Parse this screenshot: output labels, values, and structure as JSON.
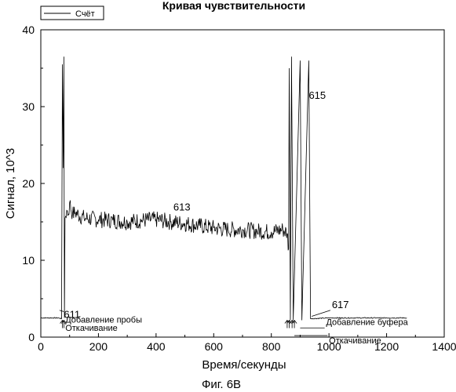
{
  "chart_data": {
    "type": "line",
    "title": "Кривая чувствительности",
    "xlabel": "Время/секунды",
    "ylabel": "Сигнал, 10^3",
    "xlim": [
      0,
      1400
    ],
    "ylim": [
      0,
      40
    ],
    "xticks": [
      0,
      200,
      400,
      600,
      800,
      1000,
      1200,
      1400
    ],
    "yticks": [
      0,
      10,
      20,
      30,
      40
    ],
    "grid": false,
    "legend": {
      "position": "top-left",
      "entries": [
        "Счёт"
      ]
    },
    "series": [
      {
        "name": "Счёт",
        "points": [
          [
            0,
            2.5
          ],
          [
            60,
            2.5
          ],
          [
            72,
            2.4
          ],
          [
            75,
            35.5
          ],
          [
            78,
            22
          ],
          [
            80,
            36.5
          ],
          [
            82,
            2.5
          ],
          [
            84,
            15.5
          ],
          [
            90,
            16.5
          ],
          [
            96,
            16
          ],
          [
            100,
            17.5
          ],
          [
            110,
            16
          ],
          [
            120,
            16.2
          ],
          [
            150,
            15.5
          ],
          [
            200,
            15.3
          ],
          [
            250,
            15.2
          ],
          [
            300,
            15.0
          ],
          [
            350,
            15.2
          ],
          [
            400,
            15.3
          ],
          [
            450,
            15.0
          ],
          [
            500,
            14.8
          ],
          [
            550,
            14.5
          ],
          [
            600,
            14.2
          ],
          [
            650,
            14.0
          ],
          [
            700,
            14.0
          ],
          [
            750,
            13.8
          ],
          [
            800,
            13.7
          ],
          [
            840,
            14.0
          ],
          [
            855,
            13.5
          ],
          [
            860,
            11.5
          ],
          [
            862,
            35
          ],
          [
            866,
            2.2
          ],
          [
            870,
            36.5
          ],
          [
            876,
            2.2
          ],
          [
            900,
            36
          ],
          [
            906,
            2.2
          ],
          [
            930,
            36
          ],
          [
            936,
            2.4
          ],
          [
            1000,
            2.5
          ],
          [
            1100,
            2.5
          ],
          [
            1200,
            2.5
          ],
          [
            1270,
            2.5
          ]
        ]
      }
    ],
    "annotations": [
      {
        "text": "611",
        "x": 80,
        "y": 2.5
      },
      {
        "text": "613",
        "x": 460,
        "y": 16.5
      },
      {
        "text": "615",
        "x": 930,
        "y": 31
      },
      {
        "text": "617",
        "x": 1010,
        "y": 3.8
      },
      {
        "text": "Добавление пробы",
        "x": 85,
        "y": 1.9
      },
      {
        "text": "Откачивание",
        "x": 85,
        "y": 0.8
      },
      {
        "text": "Добавление буфера",
        "x": 990,
        "y": 1.6
      },
      {
        "text": "Откачивание",
        "x": 1000,
        "y": -0.8
      }
    ]
  },
  "figure_caption": "Фиг. 6B"
}
